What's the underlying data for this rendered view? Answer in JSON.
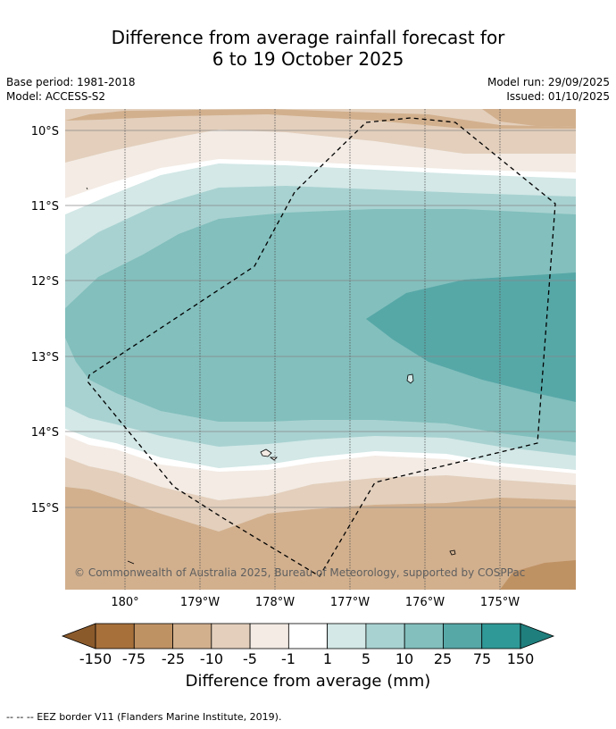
{
  "title": {
    "line1": "Difference from average rainfall forecast for",
    "line2": "6 to 19 October 2025"
  },
  "meta": {
    "base_period": "Base period: 1981-2018",
    "model": "Model: ACCESS-S2",
    "model_run": "Model run: 29/09/2025",
    "issued": "Issued: 01/10/2025"
  },
  "map": {
    "lat_labels": [
      "10°S",
      "11°S",
      "12°S",
      "13°S",
      "14°S",
      "15°S"
    ],
    "lon_labels": [
      "180°",
      "179°W",
      "178°W",
      "177°W",
      "176°W",
      "175°W"
    ],
    "copyright": "© Commonwealth of Australia 2025, Bureau of Meteorology, supported by COSPPac"
  },
  "colorbar": {
    "ticks": [
      "-150",
      "-75",
      "-25",
      "-10",
      "-5",
      "-1",
      "1",
      "5",
      "10",
      "25",
      "75",
      "150"
    ],
    "colors": [
      "#a7703b",
      "#bf9264",
      "#d2b08e",
      "#e3cfbc",
      "#f3ebe4",
      "#ffffff",
      "#d3e8e7",
      "#a8d2d1",
      "#82bfbd",
      "#56a8a7",
      "#2f9997"
    ],
    "label": "Difference from average (mm)"
  },
  "footnote": "--  --  -- EEZ border V11 (Flanders Marine Institute, 2019)."
}
